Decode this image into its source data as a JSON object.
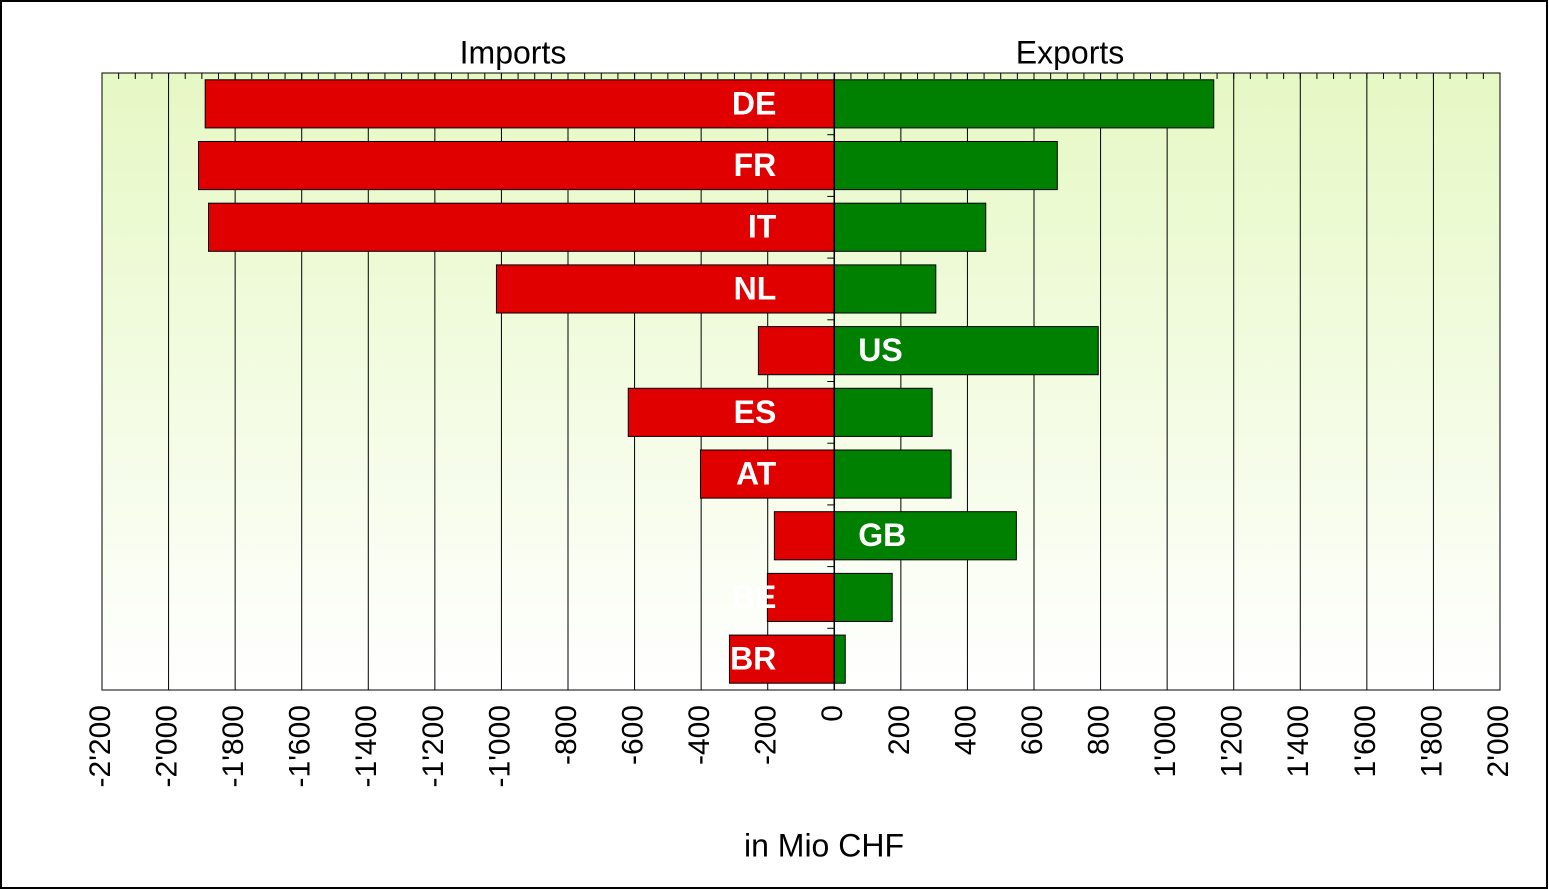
{
  "chart_data": {
    "type": "butterfly-bar",
    "x_label": "in Mio CHF",
    "categories": [
      "DE",
      "FR",
      "IT",
      "NL",
      "US",
      "ES",
      "AT",
      "GB",
      "BE",
      "BR"
    ],
    "series": [
      {
        "name": "Imports",
        "color": "#e00000",
        "values": [
          -1890,
          -1910,
          -1880,
          -1015,
          -228,
          -619,
          -402,
          -180,
          -201,
          -315
        ]
      },
      {
        "name": "Exports",
        "color": "#008000",
        "values": [
          1140,
          670,
          455,
          305,
          793,
          294,
          351,
          547,
          174,
          33
        ]
      }
    ],
    "xlim": [
      -2200,
      2000
    ],
    "xticks": [
      {
        "value": -2200,
        "label": "-2'200"
      },
      {
        "value": -2000,
        "label": "-2'000"
      },
      {
        "value": -1800,
        "label": "-1'800"
      },
      {
        "value": -1600,
        "label": "-1'600"
      },
      {
        "value": -1400,
        "label": "-1'400"
      },
      {
        "value": -1200,
        "label": "-1'200"
      },
      {
        "value": -1000,
        "label": "-1'000"
      },
      -800,
      -600,
      -400,
      -200,
      0,
      200,
      400,
      600,
      800,
      {
        "value": 1000,
        "label": "1'000"
      },
      {
        "value": 1200,
        "label": "1'200"
      },
      {
        "value": 1400,
        "label": "1'400"
      },
      {
        "value": 1600,
        "label": "1'600"
      },
      {
        "value": 1800,
        "label": "1'800"
      },
      {
        "value": 2000,
        "label": "2'000"
      }
    ],
    "grid": true
  }
}
